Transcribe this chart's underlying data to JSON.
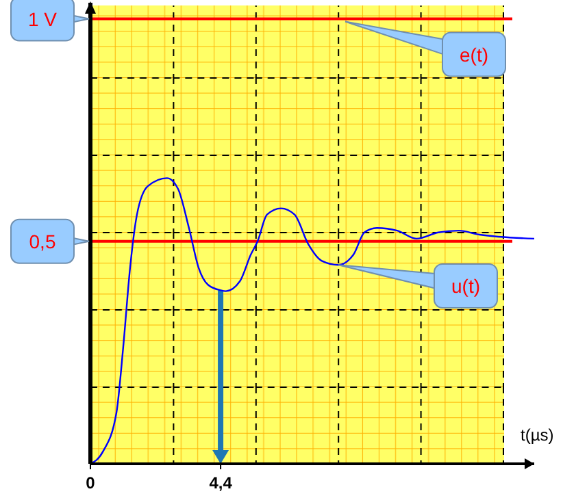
{
  "chart_data": {
    "type": "line",
    "xlabel": "t(µs)",
    "xlim": [
      0,
      15
    ],
    "ylim": [
      0,
      1.03
    ],
    "xticks": [
      {
        "value": 0,
        "label": "0"
      },
      {
        "value": 4.4,
        "label": "4,4"
      }
    ],
    "yticks": [
      {
        "value": 0.5,
        "label": "0,5"
      },
      {
        "value": 1,
        "label": "1 V"
      }
    ],
    "series": [
      {
        "name": "u(t)",
        "color": "#0000ff",
        "x": [
          0,
          0.42,
          0.88,
          1.11,
          1.34,
          1.57,
          1.94,
          2.59,
          2.96,
          3.33,
          3.66,
          3.98,
          4.4,
          4.58,
          5.05,
          5.42,
          5.65,
          5.97,
          6.44,
          6.9,
          7.36,
          7.82,
          8.38,
          8.89,
          9.26,
          9.68,
          10.37,
          11.02,
          11.76,
          12.45,
          13.15,
          15
        ],
        "values": [
          0,
          0.027,
          0.115,
          0.263,
          0.44,
          0.559,
          0.624,
          0.642,
          0.618,
          0.53,
          0.44,
          0.402,
          0.39,
          0.388,
          0.41,
          0.47,
          0.5,
          0.56,
          0.574,
          0.56,
          0.494,
          0.456,
          0.447,
          0.47,
          0.52,
          0.53,
          0.524,
          0.506,
          0.52,
          0.524,
          0.515,
          0.506
        ]
      }
    ],
    "ref_lines": [
      {
        "axis": "y",
        "value": 1,
        "label": "e(t)",
        "color": "#ff0000"
      },
      {
        "axis": "y",
        "value": 0.5,
        "color": "#ff0000"
      },
      {
        "axis": "x",
        "value": 4.4,
        "color": "#1f77b4"
      }
    ]
  }
}
